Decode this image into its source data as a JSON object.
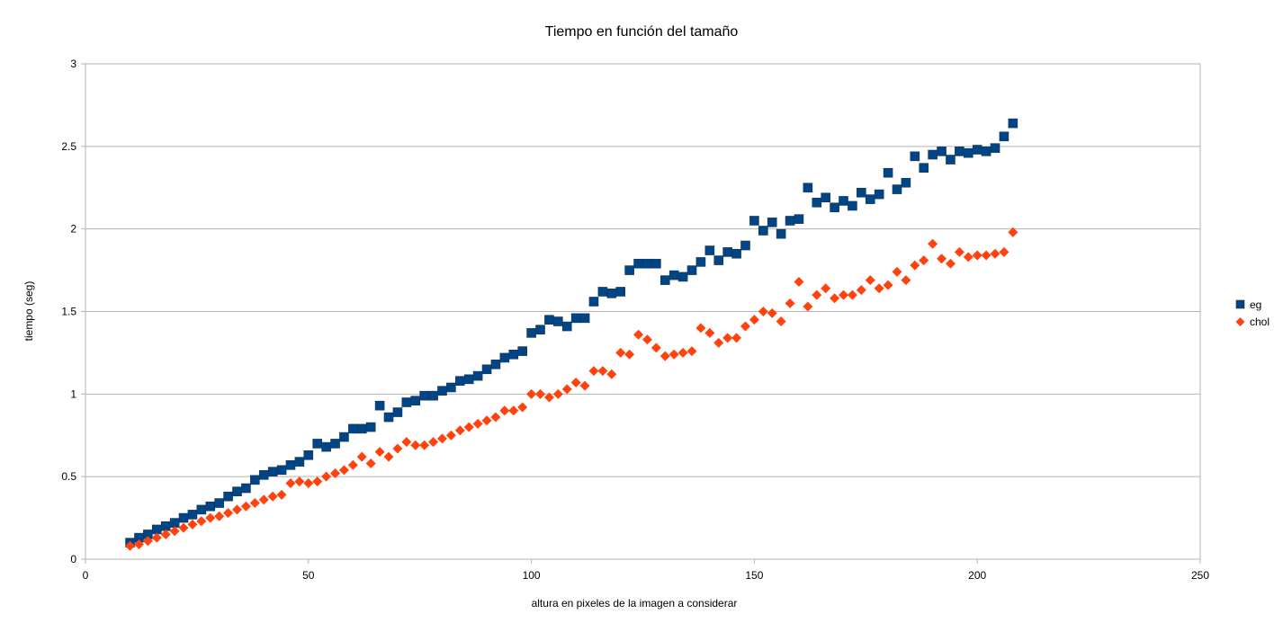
{
  "chart_data": {
    "type": "scatter",
    "title": "Tiempo en función del tamaño",
    "xlabel": "altura en pixeles de la imagen a considerar",
    "ylabel": "tiempo (seg)",
    "xlim": [
      0,
      250
    ],
    "ylim": [
      0,
      3
    ],
    "x_ticks": [
      "0",
      "50",
      "100",
      "150",
      "200",
      "250"
    ],
    "y_ticks": [
      "0",
      "0.5",
      "1",
      "1.5",
      "2",
      "2.5",
      "3"
    ],
    "grid": "horizontal",
    "legend_position": "right",
    "series": [
      {
        "name": "eg",
        "color": "#004586",
        "marker": "square",
        "points": [
          [
            10,
            0.1
          ],
          [
            12,
            0.13
          ],
          [
            14,
            0.15
          ],
          [
            16,
            0.18
          ],
          [
            18,
            0.2
          ],
          [
            20,
            0.22
          ],
          [
            22,
            0.25
          ],
          [
            24,
            0.27
          ],
          [
            26,
            0.3
          ],
          [
            28,
            0.32
          ],
          [
            30,
            0.34
          ],
          [
            32,
            0.38
          ],
          [
            34,
            0.41
          ],
          [
            36,
            0.43
          ],
          [
            38,
            0.48
          ],
          [
            40,
            0.51
          ],
          [
            42,
            0.53
          ],
          [
            44,
            0.54
          ],
          [
            46,
            0.57
          ],
          [
            48,
            0.59
          ],
          [
            50,
            0.63
          ],
          [
            52,
            0.7
          ],
          [
            54,
            0.68
          ],
          [
            56,
            0.7
          ],
          [
            58,
            0.74
          ],
          [
            60,
            0.79
          ],
          [
            62,
            0.79
          ],
          [
            64,
            0.8
          ],
          [
            66,
            0.93
          ],
          [
            68,
            0.86
          ],
          [
            70,
            0.89
          ],
          [
            72,
            0.95
          ],
          [
            74,
            0.96
          ],
          [
            76,
            0.99
          ],
          [
            78,
            0.99
          ],
          [
            80,
            1.02
          ],
          [
            82,
            1.04
          ],
          [
            84,
            1.08
          ],
          [
            86,
            1.09
          ],
          [
            88,
            1.11
          ],
          [
            90,
            1.15
          ],
          [
            92,
            1.18
          ],
          [
            94,
            1.22
          ],
          [
            96,
            1.24
          ],
          [
            98,
            1.26
          ],
          [
            100,
            1.37
          ],
          [
            102,
            1.39
          ],
          [
            104,
            1.45
          ],
          [
            106,
            1.44
          ],
          [
            108,
            1.41
          ],
          [
            110,
            1.46
          ],
          [
            112,
            1.46
          ],
          [
            114,
            1.56
          ],
          [
            116,
            1.62
          ],
          [
            118,
            1.61
          ],
          [
            120,
            1.62
          ],
          [
            122,
            1.75
          ],
          [
            124,
            1.79
          ],
          [
            126,
            1.79
          ],
          [
            128,
            1.79
          ],
          [
            130,
            1.69
          ],
          [
            132,
            1.72
          ],
          [
            134,
            1.71
          ],
          [
            136,
            1.75
          ],
          [
            138,
            1.8
          ],
          [
            140,
            1.87
          ],
          [
            142,
            1.81
          ],
          [
            144,
            1.86
          ],
          [
            146,
            1.85
          ],
          [
            148,
            1.9
          ],
          [
            150,
            2.05
          ],
          [
            152,
            1.99
          ],
          [
            154,
            2.04
          ],
          [
            156,
            1.97
          ],
          [
            158,
            2.05
          ],
          [
            160,
            2.06
          ],
          [
            162,
            2.25
          ],
          [
            164,
            2.16
          ],
          [
            166,
            2.19
          ],
          [
            168,
            2.13
          ],
          [
            170,
            2.17
          ],
          [
            172,
            2.14
          ],
          [
            174,
            2.22
          ],
          [
            176,
            2.18
          ],
          [
            178,
            2.21
          ],
          [
            180,
            2.34
          ],
          [
            182,
            2.24
          ],
          [
            184,
            2.28
          ],
          [
            186,
            2.44
          ],
          [
            188,
            2.37
          ],
          [
            190,
            2.45
          ],
          [
            192,
            2.47
          ],
          [
            194,
            2.42
          ],
          [
            196,
            2.47
          ],
          [
            198,
            2.46
          ],
          [
            200,
            2.48
          ],
          [
            202,
            2.47
          ],
          [
            204,
            2.49
          ],
          [
            206,
            2.56
          ],
          [
            208,
            2.64
          ]
        ]
      },
      {
        "name": "chol",
        "color": "#ff420e",
        "marker": "diamond",
        "points": [
          [
            10,
            0.08
          ],
          [
            12,
            0.09
          ],
          [
            14,
            0.11
          ],
          [
            16,
            0.13
          ],
          [
            18,
            0.15
          ],
          [
            20,
            0.17
          ],
          [
            22,
            0.19
          ],
          [
            24,
            0.21
          ],
          [
            26,
            0.23
          ],
          [
            28,
            0.25
          ],
          [
            30,
            0.26
          ],
          [
            32,
            0.28
          ],
          [
            34,
            0.3
          ],
          [
            36,
            0.32
          ],
          [
            38,
            0.34
          ],
          [
            40,
            0.36
          ],
          [
            42,
            0.38
          ],
          [
            44,
            0.39
          ],
          [
            46,
            0.46
          ],
          [
            48,
            0.47
          ],
          [
            50,
            0.46
          ],
          [
            52,
            0.47
          ],
          [
            54,
            0.5
          ],
          [
            56,
            0.52
          ],
          [
            58,
            0.54
          ],
          [
            60,
            0.57
          ],
          [
            62,
            0.62
          ],
          [
            64,
            0.58
          ],
          [
            66,
            0.65
          ],
          [
            68,
            0.62
          ],
          [
            70,
            0.67
          ],
          [
            72,
            0.71
          ],
          [
            74,
            0.69
          ],
          [
            76,
            0.69
          ],
          [
            78,
            0.71
          ],
          [
            80,
            0.73
          ],
          [
            82,
            0.75
          ],
          [
            84,
            0.78
          ],
          [
            86,
            0.8
          ],
          [
            88,
            0.82
          ],
          [
            90,
            0.84
          ],
          [
            92,
            0.86
          ],
          [
            94,
            0.9
          ],
          [
            96,
            0.9
          ],
          [
            98,
            0.92
          ],
          [
            100,
            1.0
          ],
          [
            102,
            1.0
          ],
          [
            104,
            0.98
          ],
          [
            106,
            1.0
          ],
          [
            108,
            1.03
          ],
          [
            110,
            1.07
          ],
          [
            112,
            1.05
          ],
          [
            114,
            1.14
          ],
          [
            116,
            1.14
          ],
          [
            118,
            1.12
          ],
          [
            120,
            1.25
          ],
          [
            122,
            1.24
          ],
          [
            124,
            1.36
          ],
          [
            126,
            1.33
          ],
          [
            128,
            1.28
          ],
          [
            130,
            1.23
          ],
          [
            132,
            1.24
          ],
          [
            134,
            1.25
          ],
          [
            136,
            1.26
          ],
          [
            138,
            1.4
          ],
          [
            140,
            1.37
          ],
          [
            142,
            1.31
          ],
          [
            144,
            1.34
          ],
          [
            146,
            1.34
          ],
          [
            148,
            1.41
          ],
          [
            150,
            1.45
          ],
          [
            152,
            1.5
          ],
          [
            154,
            1.49
          ],
          [
            156,
            1.44
          ],
          [
            158,
            1.55
          ],
          [
            160,
            1.68
          ],
          [
            162,
            1.53
          ],
          [
            164,
            1.6
          ],
          [
            166,
            1.64
          ],
          [
            168,
            1.58
          ],
          [
            170,
            1.6
          ],
          [
            172,
            1.6
          ],
          [
            174,
            1.63
          ],
          [
            176,
            1.69
          ],
          [
            178,
            1.64
          ],
          [
            180,
            1.66
          ],
          [
            182,
            1.74
          ],
          [
            184,
            1.69
          ],
          [
            186,
            1.78
          ],
          [
            188,
            1.81
          ],
          [
            190,
            1.91
          ],
          [
            192,
            1.82
          ],
          [
            194,
            1.79
          ],
          [
            196,
            1.86
          ],
          [
            198,
            1.83
          ],
          [
            200,
            1.84
          ],
          [
            202,
            1.84
          ],
          [
            204,
            1.85
          ],
          [
            206,
            1.86
          ],
          [
            208,
            1.98
          ]
        ]
      }
    ]
  }
}
